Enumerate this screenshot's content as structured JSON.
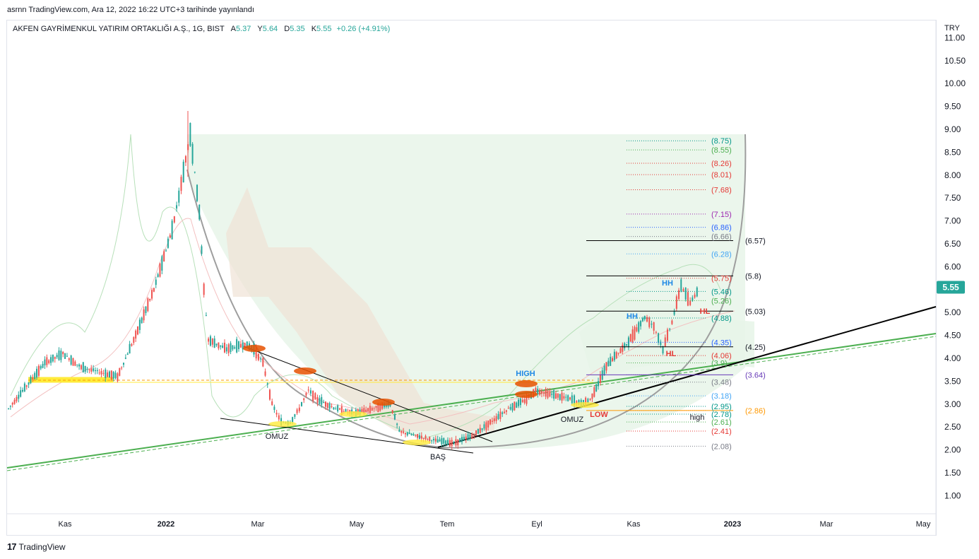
{
  "header": {
    "publish_text": "asrnn TradingView.com, Ara 12, 2022 16:22 UTC+3 tarihinde yayınlandı"
  },
  "symbol": {
    "name": "AKFEN GAYRİMENKUL YATIRIM ORTAKLIĞI A.Ş., 1G, BIST",
    "open_label": "A",
    "open": "5.37",
    "high_label": "Y",
    "high": "5.64",
    "low_label": "D",
    "low": "5.35",
    "close_label": "K",
    "close": "5.55",
    "change": "+0.26 (+4.91%)"
  },
  "currency": "TRY",
  "price_tag": "5.55",
  "footer": {
    "brand": "TradingView",
    "logo": "17"
  },
  "colors": {
    "up": "#26a69a",
    "down": "#ef5350",
    "price_tag": "#26a69a",
    "trend_green": "#4caf50",
    "yellow": "#ffeb3b",
    "orange": "#e65100"
  },
  "chart_data": {
    "type": "candlestick",
    "ylim": [
      0.65,
      11.0
    ],
    "yticks": [
      "11.00",
      "10.50",
      "10.00",
      "9.50",
      "9.00",
      "8.50",
      "8.00",
      "7.50",
      "7.00",
      "6.50",
      "6.00",
      "5.50",
      "5.00",
      "4.50",
      "4.00",
      "3.50",
      "3.00",
      "2.50",
      "2.00",
      "1.50",
      "1.00"
    ],
    "xticks": [
      "Kas",
      "2022",
      "Mar",
      "May",
      "Tem",
      "Eyl",
      "Kas",
      "2023",
      "Mar",
      "May"
    ],
    "last_price": 5.55,
    "horizontal_levels": [
      {
        "value": 6.57,
        "label": "(6.57)"
      },
      {
        "value": 5.8,
        "label": "(5.8)"
      },
      {
        "value": 5.03,
        "label": "(5.03)"
      },
      {
        "value": 4.25,
        "label": "(4.25)"
      }
    ],
    "fib_levels": [
      {
        "value": 8.75,
        "label": "(8.75)",
        "color": "#009688"
      },
      {
        "value": 8.55,
        "label": "(8.55)",
        "color": "#4caf50"
      },
      {
        "value": 8.26,
        "label": "(8.26)",
        "color": "#e53935"
      },
      {
        "value": 8.01,
        "label": "(8.01)",
        "color": "#e53935"
      },
      {
        "value": 7.68,
        "label": "(7.68)",
        "color": "#e53935"
      },
      {
        "value": 7.15,
        "label": "(7.15)",
        "color": "#9c27b0"
      },
      {
        "value": 6.86,
        "label": "(6.86)",
        "color": "#2962ff"
      },
      {
        "value": 6.66,
        "label": "(6.66)",
        "color": "#787b86"
      },
      {
        "value": 6.28,
        "label": "(6.28)",
        "color": "#42a5f5"
      },
      {
        "value": 5.75,
        "label": "(5.75)",
        "color": "#e53935"
      },
      {
        "value": 5.46,
        "label": "(5.46)",
        "color": "#009688"
      },
      {
        "value": 5.26,
        "label": "(5.26)",
        "color": "#4caf50"
      },
      {
        "value": 4.88,
        "label": "(4.88)",
        "color": "#009688"
      },
      {
        "value": 4.35,
        "label": "(4.35)",
        "color": "#2962ff"
      },
      {
        "value": 4.06,
        "label": "(4.06)",
        "color": "#e53935"
      },
      {
        "value": 3.9,
        "label": "(3.9)",
        "color": "#4caf50"
      },
      {
        "value": 3.64,
        "label": "(3.64)",
        "color": "#673ab7"
      },
      {
        "value": 3.48,
        "label": "(3.48)",
        "color": "#787b86"
      },
      {
        "value": 3.18,
        "label": "(3.18)",
        "color": "#42a5f5"
      },
      {
        "value": 2.95,
        "label": "(2.95)",
        "color": "#009688"
      },
      {
        "value": 2.86,
        "label": "(2.86)",
        "color": "#ff9800"
      },
      {
        "value": 2.78,
        "label": "(2.78)",
        "color": "#009688"
      },
      {
        "value": 2.61,
        "label": "(2.61)",
        "color": "#4caf50"
      },
      {
        "value": 2.41,
        "label": "(2.41)",
        "color": "#e53935"
      },
      {
        "value": 2.08,
        "label": "(2.08)",
        "color": "#787b86"
      }
    ],
    "annotations": [
      {
        "text": "OMUZ",
        "color": "#131722"
      },
      {
        "text": "BAŞ",
        "color": "#131722"
      },
      {
        "text": "OMUZ",
        "color": "#131722"
      },
      {
        "text": "HIGH",
        "color": "#1e88e5"
      },
      {
        "text": "LOW",
        "color": "#e53935"
      },
      {
        "text": "high",
        "color": "#131722"
      },
      {
        "text": "HH",
        "color": "#1e88e5"
      },
      {
        "text": "HH",
        "color": "#1e88e5"
      },
      {
        "text": "HL",
        "color": "#e53935"
      },
      {
        "text": "HL",
        "color": "#e53935"
      }
    ],
    "price_path": [
      [
        0,
        2.9
      ],
      [
        0.02,
        3.4
      ],
      [
        0.04,
        3.9
      ],
      [
        0.06,
        4.1
      ],
      [
        0.08,
        3.8
      ],
      [
        0.1,
        3.7
      ],
      [
        0.12,
        3.6
      ],
      [
        0.14,
        4.5
      ],
      [
        0.16,
        5.5
      ],
      [
        0.18,
        6.8
      ],
      [
        0.19,
        7.8
      ],
      [
        0.2,
        8.9
      ],
      [
        0.21,
        7.2
      ],
      [
        0.215,
        5.5
      ],
      [
        0.22,
        4.4
      ],
      [
        0.24,
        4.2
      ],
      [
        0.26,
        4.3
      ],
      [
        0.27,
        4.2
      ],
      [
        0.28,
        3.9
      ],
      [
        0.29,
        3.0
      ],
      [
        0.3,
        2.6
      ],
      [
        0.31,
        2.6
      ],
      [
        0.32,
        2.9
      ],
      [
        0.33,
        3.3
      ],
      [
        0.34,
        3.1
      ],
      [
        0.36,
        2.9
      ],
      [
        0.38,
        2.8
      ],
      [
        0.4,
        2.9
      ],
      [
        0.42,
        3.0
      ],
      [
        0.43,
        2.4
      ],
      [
        0.45,
        2.3
      ],
      [
        0.47,
        2.2
      ],
      [
        0.49,
        2.15
      ],
      [
        0.51,
        2.3
      ],
      [
        0.53,
        2.6
      ],
      [
        0.55,
        2.9
      ],
      [
        0.57,
        3.1
      ],
      [
        0.58,
        3.3
      ],
      [
        0.6,
        3.2
      ],
      [
        0.62,
        3.1
      ],
      [
        0.63,
        3.0
      ],
      [
        0.64,
        3.1
      ],
      [
        0.66,
        3.9
      ],
      [
        0.68,
        4.3
      ],
      [
        0.7,
        4.9
      ],
      [
        0.71,
        4.7
      ],
      [
        0.72,
        4.2
      ],
      [
        0.73,
        4.8
      ],
      [
        0.74,
        5.6
      ],
      [
        0.75,
        5.2
      ],
      [
        0.76,
        5.55
      ]
    ]
  }
}
